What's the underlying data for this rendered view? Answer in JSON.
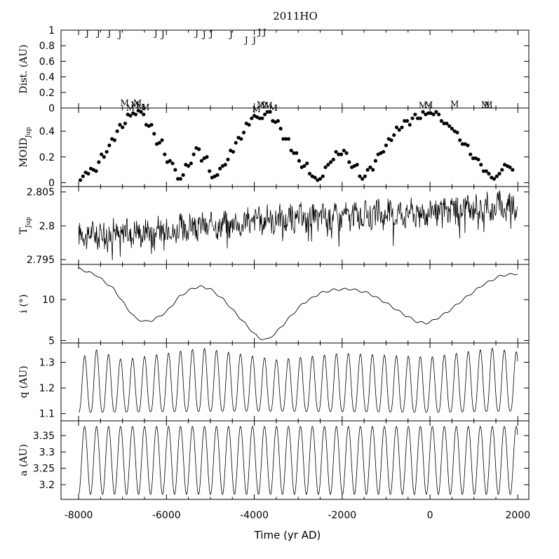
{
  "title": "2011HO",
  "xlabel": "Time (yr AD)",
  "chart_data": {
    "type": "multi-panel line/scatter",
    "xlim": [
      -8400,
      2250
    ],
    "x_ticks": [
      -8000,
      -6000,
      -4000,
      -2000,
      0,
      2000
    ],
    "panels": [
      {
        "key": "dist",
        "type": "scatter-markers",
        "ylabel": "Dist. (AU)",
        "ylim": [
          0,
          1
        ],
        "y_ticks": [
          0,
          0.2,
          0.4,
          0.6,
          0.8,
          1
        ],
        "y_tick_labels": [
          "0",
          "0.2",
          "0.4",
          "0.6",
          "0.8",
          "1"
        ],
        "series": [
          {
            "name": "J",
            "marker": "J",
            "points": [
              {
                "x": -7800,
                "y": 0.97
              },
              {
                "x": -7550,
                "y": 0.97
              },
              {
                "x": -7300,
                "y": 0.97
              },
              {
                "x": -7060,
                "y": 0.95
              },
              {
                "x": -6240,
                "y": 0.97
              },
              {
                "x": -6080,
                "y": 0.95
              },
              {
                "x": -5310,
                "y": 0.97
              },
              {
                "x": -5140,
                "y": 0.95
              },
              {
                "x": -4980,
                "y": 0.96
              },
              {
                "x": -4530,
                "y": 0.95
              },
              {
                "x": -4180,
                "y": 0.88
              },
              {
                "x": -4000,
                "y": 0.88
              },
              {
                "x": -3880,
                "y": 0.98
              },
              {
                "x": -3770,
                "y": 0.98
              }
            ]
          },
          {
            "name": "M",
            "marker": "M",
            "points": [
              {
                "x": -6950,
                "y": 0.07
              },
              {
                "x": -6820,
                "y": 0.01
              },
              {
                "x": -6720,
                "y": 0.05
              },
              {
                "x": -6660,
                "y": 0.07
              },
              {
                "x": -6580,
                "y": 0.02
              },
              {
                "x": -6480,
                "y": 0.02
              },
              {
                "x": -3950,
                "y": -0.01
              },
              {
                "x": -3850,
                "y": 0.05
              },
              {
                "x": -3770,
                "y": 0.04
              },
              {
                "x": -3680,
                "y": 0.04
              },
              {
                "x": -3570,
                "y": 0.01
              },
              {
                "x": -160,
                "y": 0.04
              },
              {
                "x": -30,
                "y": 0.05
              },
              {
                "x": 560,
                "y": 0.06
              },
              {
                "x": 1260,
                "y": 0.05
              },
              {
                "x": 1330,
                "y": 0.05
              }
            ]
          }
        ]
      },
      {
        "key": "moid",
        "type": "scatter",
        "ylabel": "MOID",
        "ylabel_sub": "Jup",
        "ylim": [
          -0.03,
          0.58
        ],
        "y_ticks": [
          0,
          0.2,
          0.4
        ],
        "y_tick_labels": [
          "0",
          "0.2",
          "0.4"
        ],
        "marker": "dot",
        "points": [
          [
            -7960,
            0.02
          ],
          [
            -7900,
            0.05
          ],
          [
            -7840,
            0.08
          ],
          [
            -7780,
            0.07
          ],
          [
            -7720,
            0.11
          ],
          [
            -7660,
            0.1
          ],
          [
            -7600,
            0.09
          ],
          [
            -7540,
            0.16
          ],
          [
            -7480,
            0.22
          ],
          [
            -7420,
            0.2
          ],
          [
            -7360,
            0.24
          ],
          [
            -7300,
            0.29
          ],
          [
            -7240,
            0.34
          ],
          [
            -7180,
            0.33
          ],
          [
            -7120,
            0.4
          ],
          [
            -7060,
            0.45
          ],
          [
            -7000,
            0.43
          ],
          [
            -6940,
            0.46
          ],
          [
            -6880,
            0.53
          ],
          [
            -6820,
            0.52
          ],
          [
            -6760,
            0.54
          ],
          [
            -6700,
            0.53
          ],
          [
            -6640,
            0.56
          ],
          [
            -6580,
            0.55
          ],
          [
            -6520,
            0.53
          ],
          [
            -6460,
            0.45
          ],
          [
            -6400,
            0.44
          ],
          [
            -6340,
            0.45
          ],
          [
            -6280,
            0.38
          ],
          [
            -6220,
            0.3
          ],
          [
            -6160,
            0.31
          ],
          [
            -6100,
            0.33
          ],
          [
            -6040,
            0.22
          ],
          [
            -5980,
            0.16
          ],
          [
            -5920,
            0.17
          ],
          [
            -5860,
            0.15
          ],
          [
            -5800,
            0.1
          ],
          [
            -5740,
            0.03
          ],
          [
            -5680,
            0.03
          ],
          [
            -5620,
            0.06
          ],
          [
            -5560,
            0.14
          ],
          [
            -5500,
            0.13
          ],
          [
            -5440,
            0.15
          ],
          [
            -5380,
            0.22
          ],
          [
            -5320,
            0.27
          ],
          [
            -5260,
            0.26
          ],
          [
            -5200,
            0.17
          ],
          [
            -5140,
            0.19
          ],
          [
            -5080,
            0.2
          ],
          [
            -5020,
            0.09
          ],
          [
            -4960,
            0.04
          ],
          [
            -4900,
            0.05
          ],
          [
            -4840,
            0.06
          ],
          [
            -4780,
            0.11
          ],
          [
            -4720,
            0.13
          ],
          [
            -4660,
            0.14
          ],
          [
            -4600,
            0.18
          ],
          [
            -4540,
            0.25
          ],
          [
            -4480,
            0.24
          ],
          [
            -4420,
            0.31
          ],
          [
            -4360,
            0.35
          ],
          [
            -4300,
            0.34
          ],
          [
            -4240,
            0.39
          ],
          [
            -4180,
            0.46
          ],
          [
            -4120,
            0.45
          ],
          [
            -4060,
            0.5
          ],
          [
            -4000,
            0.52
          ],
          [
            -3940,
            0.51
          ],
          [
            -3880,
            0.5
          ],
          [
            -3820,
            0.5
          ],
          [
            -3760,
            0.53
          ],
          [
            -3700,
            0.55
          ],
          [
            -3640,
            0.55
          ],
          [
            -3580,
            0.48
          ],
          [
            -3520,
            0.47
          ],
          [
            -3460,
            0.48
          ],
          [
            -3400,
            0.42
          ],
          [
            -3340,
            0.34
          ],
          [
            -3280,
            0.34
          ],
          [
            -3220,
            0.34
          ],
          [
            -3160,
            0.25
          ],
          [
            -3100,
            0.23
          ],
          [
            -3040,
            0.23
          ],
          [
            -2980,
            0.17
          ],
          [
            -2920,
            0.12
          ],
          [
            -2860,
            0.13
          ],
          [
            -2800,
            0.15
          ],
          [
            -2740,
            0.07
          ],
          [
            -2680,
            0.05
          ],
          [
            -2620,
            0.04
          ],
          [
            -2560,
            0.02
          ],
          [
            -2500,
            0.03
          ],
          [
            -2440,
            0.05
          ],
          [
            -2380,
            0.12
          ],
          [
            -2320,
            0.14
          ],
          [
            -2260,
            0.16
          ],
          [
            -2200,
            0.18
          ],
          [
            -2140,
            0.24
          ],
          [
            -2080,
            0.22
          ],
          [
            -2020,
            0.22
          ],
          [
            -1960,
            0.25
          ],
          [
            -1900,
            0.23
          ],
          [
            -1840,
            0.16
          ],
          [
            -1780,
            0.12
          ],
          [
            -1720,
            0.13
          ],
          [
            -1660,
            0.14
          ],
          [
            -1600,
            0.05
          ],
          [
            -1540,
            0.03
          ],
          [
            -1480,
            0.05
          ],
          [
            -1420,
            0.1
          ],
          [
            -1360,
            0.12
          ],
          [
            -1300,
            0.1
          ],
          [
            -1240,
            0.17
          ],
          [
            -1180,
            0.22
          ],
          [
            -1120,
            0.23
          ],
          [
            -1060,
            0.24
          ],
          [
            -1000,
            0.29
          ],
          [
            -940,
            0.34
          ],
          [
            -880,
            0.33
          ],
          [
            -820,
            0.37
          ],
          [
            -760,
            0.43
          ],
          [
            -700,
            0.41
          ],
          [
            -640,
            0.43
          ],
          [
            -580,
            0.48
          ],
          [
            -520,
            0.48
          ],
          [
            -460,
            0.45
          ],
          [
            -400,
            0.5
          ],
          [
            -340,
            0.53
          ],
          [
            -280,
            0.5
          ],
          [
            -220,
            0.5
          ],
          [
            -160,
            0.55
          ],
          [
            -100,
            0.53
          ],
          [
            -40,
            0.54
          ],
          [
            20,
            0.54
          ],
          [
            80,
            0.53
          ],
          [
            140,
            0.55
          ],
          [
            200,
            0.53
          ],
          [
            260,
            0.48
          ],
          [
            320,
            0.46
          ],
          [
            380,
            0.46
          ],
          [
            440,
            0.44
          ],
          [
            500,
            0.42
          ],
          [
            560,
            0.4
          ],
          [
            620,
            0.39
          ],
          [
            680,
            0.33
          ],
          [
            740,
            0.3
          ],
          [
            800,
            0.3
          ],
          [
            860,
            0.29
          ],
          [
            920,
            0.22
          ],
          [
            980,
            0.19
          ],
          [
            1040,
            0.19
          ],
          [
            1100,
            0.18
          ],
          [
            1160,
            0.14
          ],
          [
            1220,
            0.09
          ],
          [
            1280,
            0.09
          ],
          [
            1340,
            0.07
          ],
          [
            1400,
            0.04
          ],
          [
            1460,
            0.03
          ],
          [
            1520,
            0.05
          ],
          [
            1580,
            0.07
          ],
          [
            1640,
            0.1
          ],
          [
            1700,
            0.14
          ],
          [
            1760,
            0.13
          ],
          [
            1820,
            0.12
          ],
          [
            1880,
            0.1
          ]
        ]
      },
      {
        "key": "tjup",
        "type": "line",
        "ylabel": "T",
        "ylabel_sub": "Jup",
        "ylim": [
          2.7943,
          2.8058
        ],
        "y_ticks": [
          2.795,
          2.8,
          2.805
        ],
        "y_tick_labels": [
          "2.795",
          "2.8",
          "2.805"
        ],
        "trend": [
          [
            -8000,
            2.7986
          ],
          [
            -6000,
            2.7993
          ],
          [
            -4000,
            2.8008
          ],
          [
            -2000,
            2.8014
          ],
          [
            0,
            2.8021
          ],
          [
            2000,
            2.8032
          ]
        ],
        "amplitude": 0.0018,
        "period": 250
      },
      {
        "key": "incl",
        "type": "line",
        "ylabel": "i (°)",
        "ylim": [
          4.7,
          14.3
        ],
        "y_ticks": [
          5,
          10
        ],
        "y_tick_labels": [
          "5",
          "10"
        ],
        "points": [
          [
            -8000,
            13.8
          ],
          [
            -7600,
            13.0
          ],
          [
            -7200,
            11.3
          ],
          [
            -6900,
            9.0
          ],
          [
            -6700,
            7.7
          ],
          [
            -6500,
            7.3
          ],
          [
            -6300,
            7.5
          ],
          [
            -6000,
            8.5
          ],
          [
            -5700,
            10.4
          ],
          [
            -5400,
            11.4
          ],
          [
            -5200,
            11.6
          ],
          [
            -5000,
            11.3
          ],
          [
            -4700,
            10.0
          ],
          [
            -4400,
            8.2
          ],
          [
            -4100,
            6.4
          ],
          [
            -3900,
            5.3
          ],
          [
            -3700,
            5.1
          ],
          [
            -3500,
            6.0
          ],
          [
            -3200,
            7.8
          ],
          [
            -2900,
            9.5
          ],
          [
            -2500,
            10.8
          ],
          [
            -2200,
            11.2
          ],
          [
            -1800,
            11.3
          ],
          [
            -1400,
            10.8
          ],
          [
            -1000,
            9.6
          ],
          [
            -600,
            8.2
          ],
          [
            -300,
            7.3
          ],
          [
            -100,
            7.1
          ],
          [
            100,
            7.5
          ],
          [
            400,
            8.5
          ],
          [
            800,
            10.2
          ],
          [
            1200,
            11.8
          ],
          [
            1600,
            12.9
          ],
          [
            2000,
            13.2
          ]
        ]
      },
      {
        "key": "q",
        "type": "line",
        "ylabel": "q (AU)",
        "ylim": [
          1.072,
          1.375
        ],
        "y_ticks": [
          1.1,
          1.2,
          1.3
        ],
        "y_tick_labels": [
          "1.1",
          "1.2",
          "1.3"
        ],
        "period": 273,
        "min_envelope": [
          [
            -8000,
            1.105
          ],
          [
            -4000,
            1.11
          ],
          [
            0,
            1.105
          ],
          [
            2000,
            1.11
          ]
        ],
        "max_envelope": [
          [
            -8000,
            1.3
          ],
          [
            -7700,
            1.355
          ],
          [
            -7000,
            1.31
          ],
          [
            -5200,
            1.355
          ],
          [
            -3500,
            1.31
          ],
          [
            -2000,
            1.335
          ],
          [
            0,
            1.32
          ],
          [
            1400,
            1.355
          ],
          [
            2000,
            1.34
          ]
        ]
      },
      {
        "key": "a",
        "type": "line",
        "ylabel": "a (AU)",
        "ylim": [
          3.155,
          3.395
        ],
        "y_ticks": [
          3.2,
          3.25,
          3.3,
          3.35
        ],
        "y_tick_labels": [
          "3.2",
          "3.25",
          "3.3",
          "3.35"
        ],
        "period": 273,
        "min_value": 3.17,
        "max_value": 3.378
      }
    ]
  }
}
